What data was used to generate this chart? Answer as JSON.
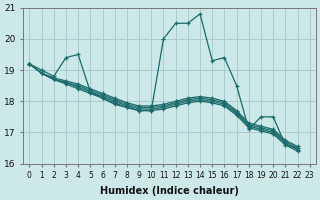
{
  "xlabel": "Humidex (Indice chaleur)",
  "bg_color": "#cce8e8",
  "line_color": "#1a6b6b",
  "grid_color": "#aacccc",
  "xlim": [
    -0.5,
    23.5
  ],
  "ylim": [
    16,
    21
  ],
  "yticks": [
    16,
    17,
    18,
    19,
    20,
    21
  ],
  "xticks": [
    0,
    1,
    2,
    3,
    4,
    5,
    6,
    7,
    8,
    9,
    10,
    11,
    12,
    13,
    14,
    15,
    16,
    17,
    18,
    19,
    20,
    21,
    22,
    23
  ],
  "series": [
    [
      19.2,
      19.0,
      18.8,
      19.4,
      19.5,
      18.3,
      18.1,
      17.9,
      17.8,
      17.7,
      17.7,
      20.0,
      20.5,
      20.5,
      20.8,
      19.3,
      19.4,
      18.5,
      17.1,
      17.5,
      17.5,
      16.6,
      16.5
    ],
    [
      19.2,
      18.9,
      18.75,
      18.65,
      18.55,
      18.4,
      18.25,
      18.1,
      17.95,
      17.85,
      17.85,
      17.9,
      18.0,
      18.1,
      18.15,
      18.1,
      18.0,
      17.7,
      17.3,
      17.2,
      17.1,
      16.75,
      16.55
    ],
    [
      19.2,
      18.9,
      18.7,
      18.6,
      18.5,
      18.35,
      18.2,
      18.05,
      17.9,
      17.8,
      17.8,
      17.85,
      17.95,
      18.05,
      18.1,
      18.05,
      17.95,
      17.65,
      17.25,
      17.15,
      17.05,
      16.7,
      16.5
    ],
    [
      19.2,
      18.9,
      18.7,
      18.6,
      18.45,
      18.3,
      18.15,
      18.0,
      17.85,
      17.75,
      17.75,
      17.8,
      17.9,
      18.0,
      18.05,
      18.0,
      17.9,
      17.6,
      17.2,
      17.1,
      17.0,
      16.65,
      16.45
    ],
    [
      19.2,
      18.9,
      18.7,
      18.55,
      18.4,
      18.25,
      18.1,
      17.95,
      17.8,
      17.7,
      17.7,
      17.75,
      17.85,
      17.95,
      18.0,
      17.95,
      17.85,
      17.55,
      17.15,
      17.05,
      16.95,
      16.6,
      16.4
    ]
  ]
}
